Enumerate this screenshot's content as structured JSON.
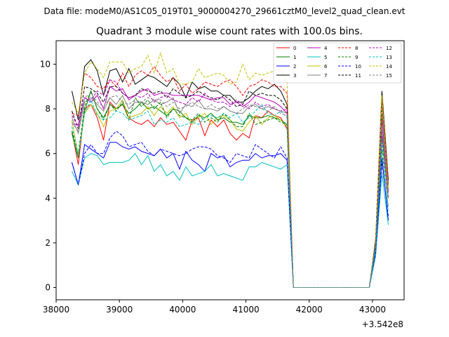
{
  "chart_data": {
    "type": "line",
    "suptitle": "Data file: modeM0/AS1C05_019T01_9000004270_29661cztM0_level2_quad_clean.evt",
    "title": "Quadrant 3 module wise count rates with 100.0s bins.",
    "xlabel": "",
    "ylabel": "",
    "x_offset_label": "+3.542e8",
    "xlim": [
      38000,
      43500
    ],
    "ylim": [
      -0.55,
      11.05
    ],
    "xticks": [
      38000,
      39000,
      40000,
      41000,
      42000,
      43000
    ],
    "yticks": [
      0,
      2,
      4,
      6,
      8,
      10
    ],
    "grid": false,
    "legend_position": "top-right",
    "x": [
      38250,
      38350,
      38450,
      38550,
      38650,
      38750,
      38850,
      38950,
      39050,
      39150,
      39250,
      39350,
      39450,
      39550,
      39650,
      39750,
      39850,
      39950,
      40050,
      40150,
      40250,
      40350,
      40450,
      40550,
      40650,
      40750,
      40850,
      40950,
      41050,
      41150,
      41250,
      41350,
      41450,
      41550,
      41650,
      41750,
      41850,
      41950,
      42050,
      42150,
      42250,
      42350,
      42450,
      42550,
      42650,
      42750,
      42850,
      42950,
      43050,
      43150,
      43250
    ],
    "series": [
      {
        "name": "0",
        "color": "#ff0000",
        "dash": "solid",
        "values": [
          7.0,
          5.5,
          8.0,
          8.2,
          7.6,
          6.6,
          8.3,
          8.0,
          8.2,
          7.6,
          7.4,
          7.3,
          7.5,
          7.2,
          7.6,
          7.3,
          7.4,
          7.0,
          6.6,
          7.5,
          7.6,
          6.8,
          7.5,
          7.2,
          7.5,
          6.9,
          6.6,
          6.9,
          6.7,
          7.7,
          7.6,
          7.9,
          7.7,
          7.6,
          7.1,
          0,
          0,
          0,
          0,
          0,
          0,
          0,
          0,
          0,
          0,
          0,
          0,
          0,
          2.0,
          7.8,
          4.6
        ]
      },
      {
        "name": "1",
        "color": "#008000",
        "dash": "solid",
        "values": [
          6.9,
          5.8,
          7.9,
          8.8,
          8.0,
          7.6,
          8.2,
          8.0,
          8.2,
          7.8,
          8.0,
          8.3,
          8.0,
          8.1,
          7.9,
          7.7,
          8.0,
          7.9,
          7.6,
          7.4,
          7.7,
          7.6,
          7.8,
          7.5,
          7.6,
          7.4,
          7.4,
          7.3,
          7.7,
          7.6,
          7.6,
          7.7,
          7.6,
          7.5,
          7.3,
          0,
          0,
          0,
          0,
          0,
          0,
          0,
          0,
          0,
          0,
          0,
          0,
          0,
          1.8,
          6.8,
          4.0
        ]
      },
      {
        "name": "2",
        "color": "#0000ff",
        "dash": "solid",
        "values": [
          5.6,
          4.6,
          6.4,
          6.2,
          6.0,
          5.8,
          6.5,
          6.5,
          6.3,
          6.2,
          6.3,
          6.1,
          6.0,
          5.9,
          6.2,
          5.8,
          6.0,
          5.3,
          6.1,
          5.7,
          5.5,
          5.2,
          6.0,
          5.8,
          5.9,
          5.4,
          5.6,
          5.7,
          5.7,
          6.0,
          5.8,
          5.9,
          5.9,
          6.0,
          5.7,
          0,
          0,
          0,
          0,
          0,
          0,
          0,
          0,
          0,
          0,
          0,
          0,
          0,
          1.5,
          5.8,
          3.0
        ]
      },
      {
        "name": "3",
        "color": "#000000",
        "dash": "solid",
        "values": [
          8.8,
          7.5,
          9.9,
          10.2,
          9.7,
          8.6,
          9.7,
          9.8,
          9.2,
          9.8,
          9.1,
          9.3,
          9.5,
          9.4,
          9.2,
          9.0,
          9.4,
          9.1,
          8.5,
          9.2,
          8.9,
          9.0,
          8.8,
          8.8,
          8.6,
          8.6,
          8.3,
          8.3,
          8.5,
          8.8,
          9.0,
          8.9,
          9.1,
          8.8,
          8.2,
          0,
          0,
          0,
          0,
          0,
          0,
          0,
          0,
          0,
          0,
          0,
          0,
          0,
          2.1,
          8.8,
          4.8
        ]
      },
      {
        "name": "4",
        "color": "#c000c0",
        "dash": "solid",
        "values": [
          7.3,
          7.3,
          8.5,
          8.3,
          8.6,
          8.0,
          9.0,
          8.8,
          8.9,
          8.4,
          8.6,
          8.8,
          8.9,
          8.6,
          8.7,
          8.7,
          8.6,
          8.6,
          8.6,
          8.6,
          8.6,
          8.5,
          8.4,
          8.5,
          8.5,
          8.2,
          8.3,
          8.1,
          8.3,
          8.6,
          8.5,
          8.4,
          8.3,
          8.1,
          7.8,
          0,
          0,
          0,
          0,
          0,
          0,
          0,
          0,
          0,
          0,
          0,
          0,
          0,
          2.0,
          7.5,
          4.3
        ]
      },
      {
        "name": "5",
        "color": "#00c0c0",
        "dash": "solid",
        "values": [
          5.2,
          4.6,
          5.8,
          6.0,
          5.9,
          5.5,
          5.6,
          5.6,
          5.6,
          5.7,
          6.0,
          5.5,
          5.9,
          5.2,
          5.5,
          5.0,
          5.2,
          4.8,
          5.4,
          5.0,
          5.1,
          5.2,
          5.5,
          5.0,
          5.1,
          5.0,
          4.9,
          4.8,
          5.4,
          5.4,
          5.6,
          5.5,
          5.4,
          5.3,
          5.5,
          0,
          0,
          0,
          0,
          0,
          0,
          0,
          0,
          0,
          0,
          0,
          0,
          0,
          1.4,
          5.1,
          2.8
        ]
      },
      {
        "name": "6",
        "color": "#c0c000",
        "dash": "solid",
        "values": [
          7.5,
          5.9,
          7.8,
          8.2,
          7.8,
          7.2,
          7.9,
          8.0,
          8.4,
          7.6,
          7.7,
          7.8,
          8.1,
          7.7,
          8.1,
          7.8,
          8.1,
          7.6,
          7.8,
          7.3,
          7.6,
          7.8,
          7.3,
          7.6,
          7.7,
          7.5,
          7.1,
          7.0,
          7.4,
          7.7,
          7.3,
          7.6,
          7.7,
          7.5,
          7.2,
          0,
          0,
          0,
          0,
          0,
          0,
          0,
          0,
          0,
          0,
          0,
          0,
          0,
          2.0,
          8.6,
          4.5
        ]
      },
      {
        "name": "7",
        "color": "#808080",
        "dash": "solid",
        "values": [
          7.6,
          6.9,
          8.3,
          8.5,
          8.2,
          7.9,
          8.5,
          8.2,
          8.6,
          8.0,
          8.3,
          8.3,
          8.2,
          8.4,
          8.2,
          8.3,
          8.5,
          7.8,
          8.2,
          8.1,
          8.4,
          8.0,
          8.0,
          7.9,
          8.1,
          7.9,
          7.8,
          7.8,
          8.1,
          8.2,
          8.0,
          8.1,
          8.0,
          7.9,
          7.8,
          0,
          0,
          0,
          0,
          0,
          0,
          0,
          0,
          0,
          0,
          0,
          0,
          0,
          2.0,
          7.8,
          4.4
        ]
      },
      {
        "name": "8",
        "color": "#ff0000",
        "dash": "dashed",
        "values": [
          7.8,
          7.7,
          9.6,
          9.4,
          9.0,
          8.9,
          9.3,
          9.0,
          9.6,
          9.0,
          9.5,
          9.7,
          9.5,
          9.9,
          9.5,
          9.2,
          9.4,
          8.8,
          9.1,
          8.7,
          8.9,
          9.2,
          9.1,
          9.0,
          9.2,
          9.3,
          9.0,
          8.6,
          9.0,
          9.1,
          9.3,
          9.2,
          9.0,
          9.0,
          8.7,
          0,
          0,
          0,
          0,
          0,
          0,
          0,
          0,
          0,
          0,
          0,
          0,
          0,
          2.1,
          8.4,
          4.8
        ]
      },
      {
        "name": "9",
        "color": "#008000",
        "dash": "dashed",
        "values": [
          7.0,
          6.0,
          8.1,
          8.8,
          8.0,
          7.5,
          8.2,
          7.9,
          8.3,
          7.5,
          8.5,
          8.1,
          8.4,
          8.0,
          8.3,
          7.6,
          8.0,
          7.7,
          7.6,
          7.5,
          7.8,
          7.4,
          7.6,
          7.4,
          7.8,
          7.5,
          7.2,
          7.2,
          7.8,
          7.3,
          7.4,
          7.5,
          7.6,
          7.4,
          7.3,
          0,
          0,
          0,
          0,
          0,
          0,
          0,
          0,
          0,
          0,
          0,
          0,
          0,
          1.8,
          6.2,
          3.6
        ]
      },
      {
        "name": "10",
        "color": "#0000ff",
        "dash": "dashed",
        "values": [
          5.6,
          4.6,
          6.0,
          6.4,
          6.0,
          6.0,
          6.7,
          7.0,
          6.8,
          6.3,
          6.4,
          6.5,
          6.1,
          5.9,
          6.2,
          6.1,
          6.0,
          5.9,
          6.0,
          6.2,
          6.3,
          6.3,
          6.2,
          5.9,
          5.8,
          5.6,
          6.0,
          5.9,
          5.8,
          6.4,
          6.2,
          6.0,
          5.8,
          6.3,
          5.8,
          0,
          0,
          0,
          0,
          0,
          0,
          0,
          0,
          0,
          0,
          0,
          0,
          0,
          1.6,
          5.6,
          3.2
        ]
      },
      {
        "name": "11",
        "color": "#000000",
        "dash": "dashed",
        "values": [
          7.9,
          7.1,
          9.0,
          8.9,
          8.7,
          8.3,
          9.0,
          9.0,
          8.7,
          8.5,
          8.6,
          8.9,
          8.8,
          8.7,
          8.8,
          8.5,
          8.9,
          8.7,
          8.5,
          8.6,
          8.8,
          8.6,
          8.5,
          8.4,
          8.6,
          8.4,
          8.1,
          8.2,
          8.8,
          8.6,
          8.7,
          8.6,
          8.6,
          8.4,
          8.0,
          0,
          0,
          0,
          0,
          0,
          0,
          0,
          0,
          0,
          0,
          0,
          0,
          0,
          2.1,
          8.2,
          4.6
        ]
      },
      {
        "name": "12",
        "color": "#c000c0",
        "dash": "dashed",
        "values": [
          7.7,
          7.2,
          8.5,
          8.4,
          8.8,
          8.6,
          9.3,
          9.2,
          8.7,
          8.5,
          8.6,
          8.5,
          8.7,
          8.3,
          8.5,
          8.6,
          8.4,
          8.3,
          8.2,
          8.5,
          8.3,
          8.7,
          8.4,
          8.3,
          8.3,
          8.1,
          8.4,
          8.2,
          8.0,
          8.3,
          8.1,
          8.2,
          8.0,
          7.9,
          8.0,
          0,
          0,
          0,
          0,
          0,
          0,
          0,
          0,
          0,
          0,
          0,
          0,
          0,
          1.9,
          7.0,
          4.1
        ]
      },
      {
        "name": "13",
        "color": "#00c0c0",
        "dash": "dashed",
        "values": [
          7.2,
          5.9,
          7.8,
          8.4,
          7.7,
          7.5,
          7.6,
          7.9,
          7.8,
          7.5,
          7.6,
          7.7,
          7.9,
          7.3,
          7.5,
          7.4,
          7.6,
          7.2,
          7.3,
          7.4,
          7.3,
          7.6,
          7.7,
          7.6,
          7.8,
          7.6,
          7.8,
          7.4,
          7.6,
          7.9,
          8.2,
          7.8,
          7.7,
          7.9,
          7.6,
          0,
          0,
          0,
          0,
          0,
          0,
          0,
          0,
          0,
          0,
          0,
          0,
          0,
          1.8,
          6.5,
          3.5
        ]
      },
      {
        "name": "14",
        "color": "#c0c000",
        "dash": "dashed",
        "values": [
          8.3,
          7.8,
          9.6,
          10.1,
          9.8,
          9.4,
          10.1,
          10.1,
          10.1,
          9.6,
          9.8,
          9.9,
          10.4,
          9.6,
          10.5,
          9.6,
          9.8,
          9.1,
          9.1,
          9.2,
          9.8,
          9.4,
          9.5,
          9.6,
          9.5,
          9.1,
          9.2,
          10.0,
          9.3,
          9.6,
          9.5,
          9.6,
          9.7,
          9.8,
          9.2,
          0,
          0,
          0,
          0,
          0,
          0,
          0,
          0,
          0,
          0,
          0,
          0,
          0,
          2.3,
          8.4,
          4.4
        ]
      },
      {
        "name": "15",
        "color": "#808080",
        "dash": "dashed",
        "values": [
          7.4,
          7.0,
          8.5,
          8.7,
          8.3,
          8.1,
          8.5,
          8.6,
          8.3,
          8.2,
          8.4,
          8.3,
          8.5,
          8.4,
          8.4,
          8.1,
          8.3,
          8.0,
          8.1,
          8.3,
          8.1,
          8.0,
          8.2,
          8.0,
          8.1,
          7.9,
          7.8,
          8.0,
          8.2,
          8.1,
          8.0,
          7.9,
          8.1,
          7.8,
          7.7,
          0,
          0,
          0,
          0,
          0,
          0,
          0,
          0,
          0,
          0,
          0,
          0,
          0,
          1.9,
          7.1,
          4.0
        ]
      }
    ]
  }
}
